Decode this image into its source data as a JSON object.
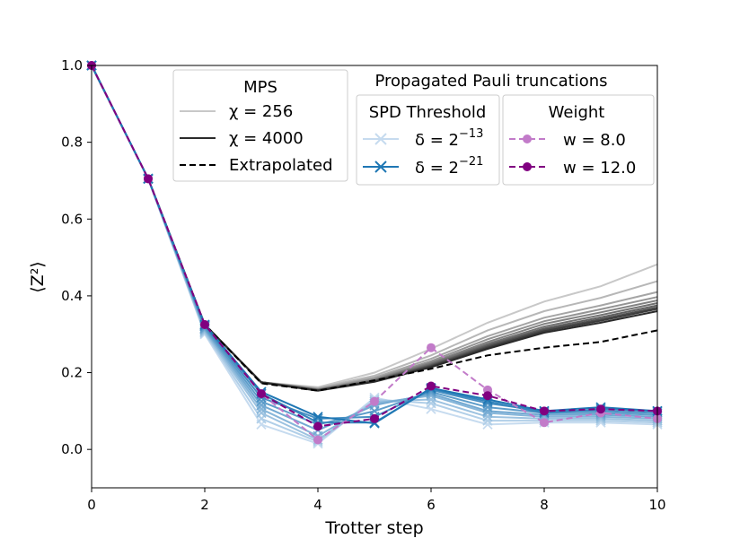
{
  "chart_data": {
    "type": "line",
    "xlabel": "Trotter step",
    "ylabel": "⟨Z²⟩",
    "xlim": [
      0,
      10
    ],
    "ylim": [
      -0.1,
      1.0
    ],
    "xticks": [
      "0",
      "2",
      "4",
      "6",
      "8",
      "10"
    ],
    "yticks": [
      "0.0",
      "0.2",
      "0.4",
      "0.6",
      "0.8",
      "1.0"
    ],
    "x": [
      0,
      1,
      2,
      3,
      4,
      5,
      6,
      7,
      8,
      9,
      10
    ],
    "mps_series": [
      {
        "name": "χ = 256",
        "values": [
          1.0,
          0.705,
          0.325,
          0.175,
          0.162,
          0.2,
          0.262,
          0.33,
          0.385,
          0.425,
          0.482
        ]
      },
      {
        "values": [
          1.0,
          0.705,
          0.325,
          0.175,
          0.16,
          0.192,
          0.245,
          0.31,
          0.36,
          0.395,
          0.438
        ]
      },
      {
        "values": [
          1.0,
          0.705,
          0.325,
          0.175,
          0.158,
          0.187,
          0.236,
          0.295,
          0.343,
          0.375,
          0.41
        ]
      },
      {
        "values": [
          1.0,
          0.705,
          0.325,
          0.175,
          0.157,
          0.184,
          0.23,
          0.287,
          0.334,
          0.365,
          0.397
        ]
      },
      {
        "values": [
          1.0,
          0.705,
          0.325,
          0.175,
          0.156,
          0.182,
          0.226,
          0.28,
          0.327,
          0.357,
          0.388
        ]
      },
      {
        "values": [
          1.0,
          0.705,
          0.325,
          0.175,
          0.155,
          0.18,
          0.223,
          0.275,
          0.32,
          0.35,
          0.381
        ]
      },
      {
        "values": [
          1.0,
          0.705,
          0.325,
          0.175,
          0.155,
          0.179,
          0.22,
          0.271,
          0.315,
          0.344,
          0.375
        ]
      },
      {
        "values": [
          1.0,
          0.705,
          0.325,
          0.175,
          0.154,
          0.178,
          0.218,
          0.268,
          0.311,
          0.339,
          0.37
        ]
      },
      {
        "values": [
          1.0,
          0.705,
          0.325,
          0.175,
          0.154,
          0.177,
          0.216,
          0.265,
          0.308,
          0.335,
          0.366
        ]
      },
      {
        "name": "χ = 4000",
        "values": [
          1.0,
          0.705,
          0.325,
          0.174,
          0.153,
          0.176,
          0.214,
          0.262,
          0.304,
          0.33,
          0.36
        ]
      }
    ],
    "extrapolated": {
      "name": "Extrapolated",
      "values": [
        1.0,
        0.705,
        0.325,
        0.172,
        0.153,
        0.18,
        0.21,
        0.245,
        0.265,
        0.28,
        0.31
      ]
    },
    "spd_series": [
      {
        "name": "δ = 2^-13",
        "values": [
          1.0,
          0.705,
          0.3,
          0.065,
          0.015,
          0.135,
          0.105,
          0.065,
          0.07,
          0.07,
          0.065
        ]
      },
      {
        "values": [
          1.0,
          0.705,
          0.303,
          0.08,
          0.02,
          0.13,
          0.12,
          0.075,
          0.075,
          0.075,
          0.07
        ]
      },
      {
        "values": [
          1.0,
          0.705,
          0.306,
          0.095,
          0.025,
          0.125,
          0.13,
          0.085,
          0.08,
          0.08,
          0.075
        ]
      },
      {
        "values": [
          1.0,
          0.705,
          0.31,
          0.105,
          0.035,
          0.12,
          0.14,
          0.095,
          0.085,
          0.085,
          0.08
        ]
      },
      {
        "values": [
          1.0,
          0.705,
          0.313,
          0.115,
          0.05,
          0.115,
          0.145,
          0.1,
          0.09,
          0.09,
          0.085
        ]
      },
      {
        "values": [
          1.0,
          0.705,
          0.316,
          0.125,
          0.065,
          0.1,
          0.15,
          0.11,
          0.095,
          0.095,
          0.09
        ]
      },
      {
        "values": [
          1.0,
          0.705,
          0.32,
          0.135,
          0.08,
          0.085,
          0.155,
          0.12,
          0.1,
          0.1,
          0.095
        ]
      },
      {
        "values": [
          1.0,
          0.705,
          0.323,
          0.145,
          0.07,
          0.07,
          0.158,
          0.125,
          0.095,
          0.105,
          0.1
        ]
      },
      {
        "name": "δ = 2^-21",
        "values": [
          1.0,
          0.705,
          0.325,
          0.15,
          0.085,
          0.068,
          0.16,
          0.13,
          0.1,
          0.11,
          0.1
        ]
      }
    ],
    "weight_series": [
      {
        "name": "w = 8.0",
        "values": [
          1.0,
          0.705,
          0.325,
          0.145,
          0.025,
          0.125,
          0.265,
          0.155,
          0.07,
          0.095,
          0.08
        ]
      },
      {
        "name": "w = 12.0",
        "values": [
          1.0,
          0.705,
          0.325,
          0.145,
          0.06,
          0.08,
          0.165,
          0.14,
          0.1,
          0.105,
          0.1
        ]
      }
    ],
    "legend": {
      "mps_title": "MPS",
      "mps_items": [
        "χ = 256",
        "χ = 4000",
        "Extrapolated"
      ],
      "pauli_title": "Propagated Pauli truncations",
      "spd_title": "SPD Threshold",
      "spd_items": [
        "δ = 2",
        "δ = 2"
      ],
      "spd_exponents": [
        "−13",
        "−21"
      ],
      "weight_title": "Weight",
      "weight_items": [
        "w = 8.0",
        "w = 12.0"
      ]
    },
    "colors": {
      "mps_light": "#c8c8c8",
      "mps_dark": "#2b2b2b",
      "extrapolated": "#000000",
      "spd_light": "#c6dbef",
      "spd_dark": "#1f77b4",
      "weight_light": "#c27bc9",
      "weight_dark": "#800080"
    }
  }
}
